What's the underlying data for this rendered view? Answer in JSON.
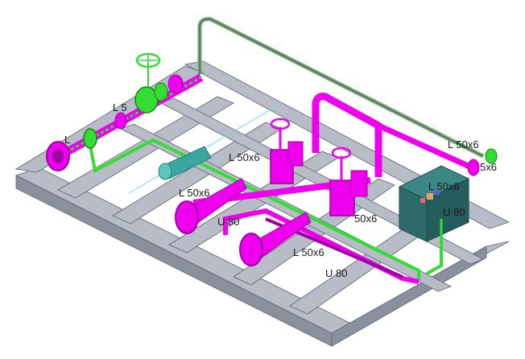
{
  "colors": {
    "frame_top": "#b7bcc6",
    "frame_side": "#8b919c",
    "frame_edge": "#5d6470",
    "magenta": "#ee00ee",
    "magenta_dark": "#a000a8",
    "green": "#33dd33",
    "green_dark": "#118811",
    "teal": "#3aa6a0",
    "cabinet": "#2d6b6b",
    "cabinet_dark": "#1d4a4a"
  },
  "labels": {
    "l1": "L 5",
    "l2": "L",
    "l3": "L 50x6",
    "l4": "L 50x6",
    "l5": "U 80",
    "l6": "L 50x6",
    "l7": "50x6",
    "l8": "U 80",
    "l9": "L 50x6",
    "l10": "5x6",
    "l11": "L 50x6",
    "l12": "U 80"
  }
}
